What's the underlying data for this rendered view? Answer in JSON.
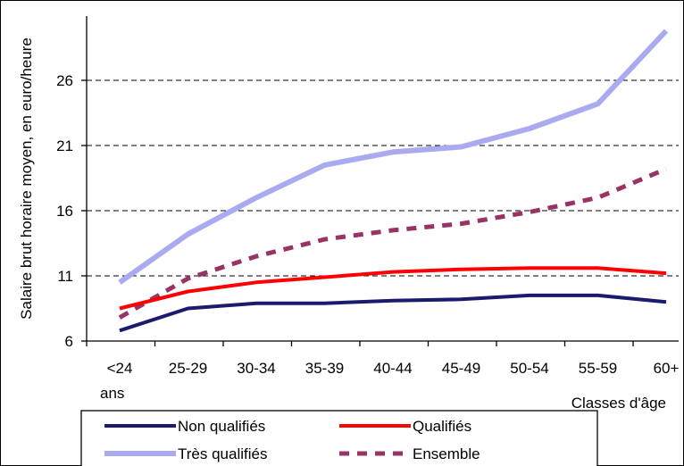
{
  "chart_data": {
    "type": "line",
    "title": "",
    "ylabel": "Salaire brut horaire moyen, en euro/heure",
    "xlabel": "Classes d'âge",
    "categories": [
      "<24 ans",
      "25-29",
      "30-34",
      "35-39",
      "40-44",
      "45-49",
      "50-54",
      "55-59",
      "60+"
    ],
    "category_lines": [
      [
        "<24",
        "ans"
      ],
      [
        "25-29"
      ],
      [
        "30-34"
      ],
      [
        "35-39"
      ],
      [
        "40-44"
      ],
      [
        "45-49"
      ],
      [
        "50-54"
      ],
      [
        "55-59"
      ],
      [
        "60+"
      ]
    ],
    "ylim": [
      6,
      30
    ],
    "yticks": [
      6,
      11,
      16,
      21,
      26
    ],
    "grid": "horizontal dashed",
    "legend_position": "bottom",
    "series": [
      {
        "name": "Non qualifiés",
        "color": "#1a1a6e",
        "style": "solid",
        "values": [
          6.8,
          8.5,
          8.9,
          8.9,
          9.1,
          9.2,
          9.5,
          9.5,
          9.0
        ]
      },
      {
        "name": "Qualifiés",
        "color": "#ff0000",
        "style": "solid",
        "values": [
          8.5,
          9.8,
          10.5,
          10.9,
          11.3,
          11.5,
          11.6,
          11.6,
          11.2
        ]
      },
      {
        "name": "Très qualifiés",
        "color": "#aaaaf0",
        "style": "solid",
        "values": [
          10.5,
          14.2,
          17.0,
          19.5,
          20.5,
          20.9,
          22.3,
          24.2,
          29.8
        ]
      },
      {
        "name": "Ensemble",
        "color": "#993366",
        "style": "dashed",
        "values": [
          7.8,
          10.8,
          12.5,
          13.8,
          14.5,
          15.0,
          15.9,
          17.0,
          19.2
        ]
      }
    ]
  }
}
